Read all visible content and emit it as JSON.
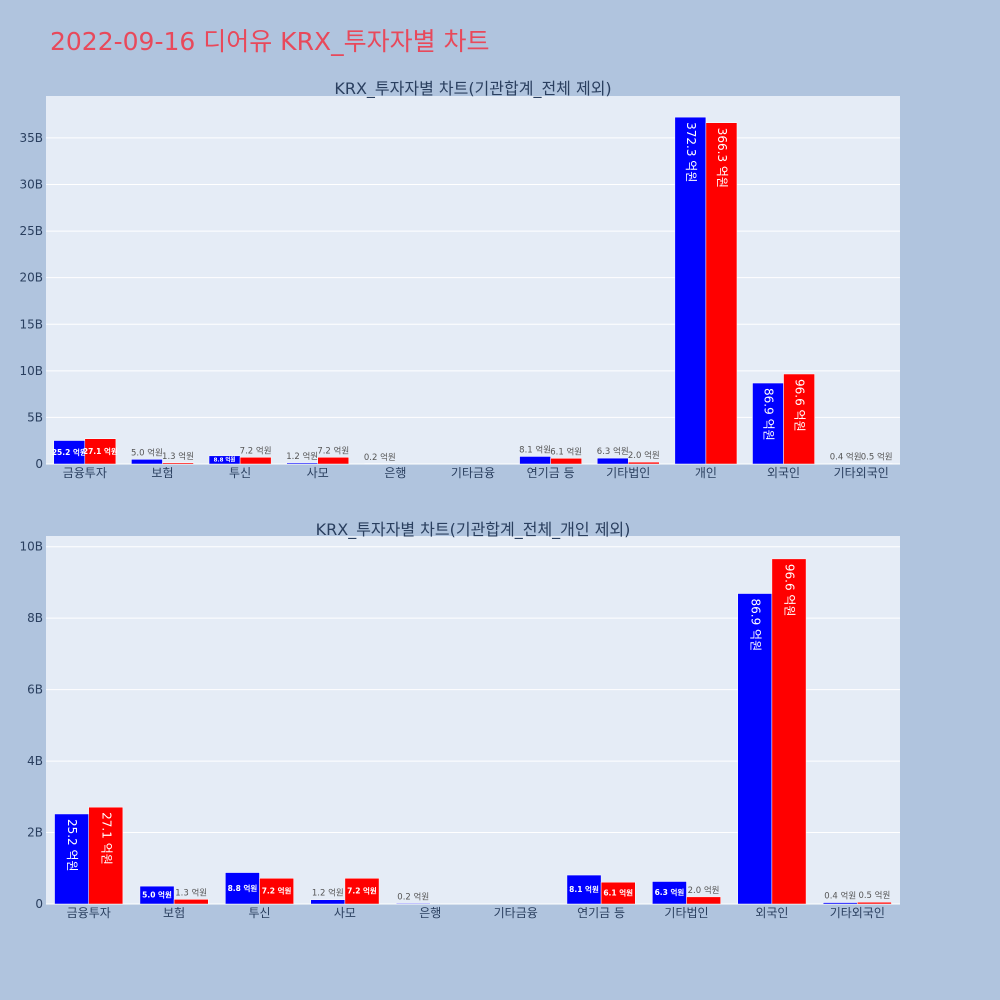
{
  "title": "2022-09-16 디어유 KRX_투자자별 차트",
  "colors": {
    "background": "#b0c4de",
    "plot_bg": "#e5ecf6",
    "buy": "#0000ff",
    "sell": "#ff0000",
    "title": "#e8495b"
  },
  "chart_data": [
    {
      "type": "bar",
      "title": "KRX_투자자별 차트(기관합계_전체 제외)",
      "categories": [
        "금융투자",
        "보험",
        "투신",
        "사모",
        "은행",
        "기타금융",
        "연기금 등",
        "기타법인",
        "개인",
        "외국인",
        "기타외국인"
      ],
      "series": [
        {
          "color": "#0000ff",
          "values": [
            2.52,
            0.5,
            0.88,
            0.12,
            0.02,
            0,
            0.81,
            0.63,
            37.23,
            8.69,
            0.04
          ],
          "labels": [
            "25.2 억원",
            "5.0 억원",
            "8.8 억원",
            "1.2 억원",
            "0.2 억원",
            "",
            "8.1 억원",
            "6.3 억원",
            "372.3 억원",
            "86.9 억원",
            "0.4 억원"
          ]
        },
        {
          "color": "#ff0000",
          "values": [
            2.71,
            0.13,
            0.72,
            0.72,
            0,
            0,
            0.61,
            0.2,
            36.63,
            9.66,
            0.05
          ],
          "labels": [
            "27.1 억원",
            "1.3 억원",
            "7.2 억원",
            "7.2 억원",
            "",
            "",
            "6.1 억원",
            "2.0 억원",
            "366.3 억원",
            "96.6 억원",
            "0.5 억원"
          ]
        }
      ],
      "ylim": [
        0,
        39.5
      ],
      "yticks": [
        0,
        5,
        10,
        15,
        20,
        25,
        30,
        35
      ],
      "ytick_labels": [
        "0",
        "5B",
        "10B",
        "15B",
        "20B",
        "25B",
        "30B",
        "35B"
      ],
      "grid": true
    },
    {
      "type": "bar",
      "title": "KRX_투자자별 차트(기관합계_전체_개인 제외)",
      "categories": [
        "금융투자",
        "보험",
        "투신",
        "사모",
        "은행",
        "기타금융",
        "연기금 등",
        "기타법인",
        "외국인",
        "기타외국인"
      ],
      "series": [
        {
          "color": "#0000ff",
          "values": [
            2.52,
            0.5,
            0.88,
            0.12,
            0.02,
            0,
            0.81,
            0.63,
            8.69,
            0.04
          ],
          "labels": [
            "25.2 억원",
            "5.0 억원",
            "8.8 억원",
            "1.2 억원",
            "0.2 억원",
            "",
            "8.1 억원",
            "6.3 억원",
            "86.9 억원",
            "0.4 억원"
          ]
        },
        {
          "color": "#ff0000",
          "values": [
            2.71,
            0.13,
            0.72,
            0.72,
            0,
            0,
            0.61,
            0.2,
            9.66,
            0.05
          ],
          "labels": [
            "27.1 억원",
            "1.3 억원",
            "7.2 억원",
            "7.2 억원",
            "",
            "",
            "6.1 억원",
            "2.0 억원",
            "96.6 억원",
            "0.5 억원"
          ]
        }
      ],
      "ylim": [
        0,
        10.3
      ],
      "yticks": [
        0,
        2,
        4,
        6,
        8,
        10
      ],
      "ytick_labels": [
        "0",
        "2B",
        "4B",
        "6B",
        "8B",
        "10B"
      ],
      "grid": true
    }
  ]
}
